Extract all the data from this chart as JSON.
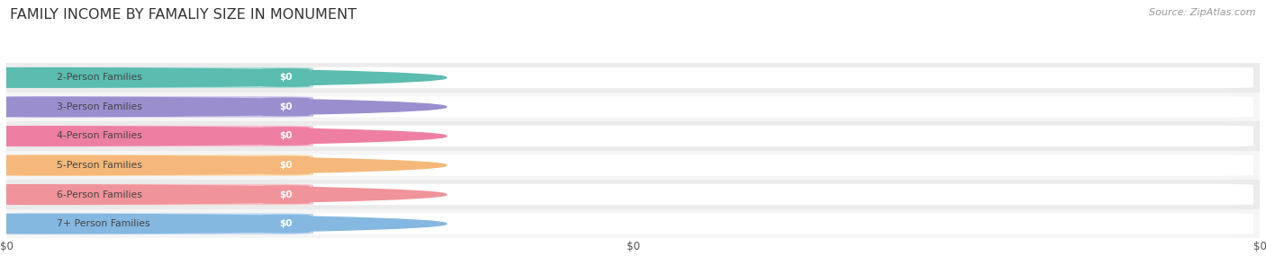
{
  "title": "FAMILY INCOME BY FAMALIY SIZE IN MONUMENT",
  "source": "Source: ZipAtlas.com",
  "categories": [
    "2-Person Families",
    "3-Person Families",
    "4-Person Families",
    "5-Person Families",
    "6-Person Families",
    "7+ Person Families"
  ],
  "values": [
    0,
    0,
    0,
    0,
    0,
    0
  ],
  "bar_colors": [
    "#5bbcb0",
    "#9b8ecf",
    "#ee7fa3",
    "#f5b87a",
    "#f0939a",
    "#85b8e0"
  ],
  "bar_colors_light": [
    "#b2e0db",
    "#c8c3e8",
    "#f7bdd0",
    "#fad9aa",
    "#f7c4c8",
    "#bdd6ed"
  ],
  "bg_bar_color": "#f2f2f2",
  "row_bg_colors": [
    "#ebebeb",
    "#f5f5f5",
    "#ebebeb",
    "#f5f5f5",
    "#ebebeb",
    "#f5f5f5"
  ],
  "tick_labels": [
    "$0",
    "$0",
    "$0"
  ],
  "background_color": "#ffffff",
  "title_color": "#333333",
  "label_color": "#555555",
  "value_label_color": "#ffffff",
  "source_color": "#999999",
  "bar_height": 0.72,
  "xlim": [
    0,
    1
  ]
}
